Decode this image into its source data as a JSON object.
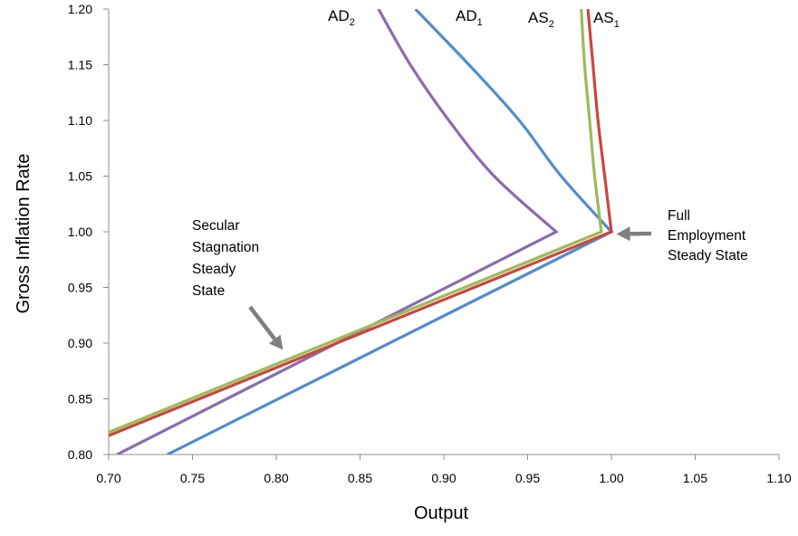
{
  "chart_data": {
    "type": "line",
    "xlabel": "Output",
    "ylabel": "Gross Inflation Rate",
    "xlim": [
      0.7,
      1.1
    ],
    "ylim": [
      0.8,
      1.2
    ],
    "x_ticks": [
      "0.70",
      "0.75",
      "0.80",
      "0.85",
      "0.90",
      "0.95",
      "1.00",
      "1.05",
      "1.10"
    ],
    "y_ticks": [
      "0.80",
      "0.85",
      "0.90",
      "0.95",
      "1.00",
      "1.05",
      "1.10",
      "1.15",
      "1.20"
    ],
    "grid": false,
    "series": [
      {
        "name": "AD",
        "subscript": "1",
        "color": "#4F8DCB",
        "points": [
          [
            0.735,
            0.8
          ],
          [
            1.0,
            1.0
          ],
          [
            0.97,
            1.05
          ],
          [
            0.945,
            1.1
          ],
          [
            0.915,
            1.15
          ],
          [
            0.883,
            1.2
          ]
        ]
      },
      {
        "name": "AD",
        "subscript": "2",
        "color": "#8B6BAF",
        "points": [
          [
            0.705,
            0.8
          ],
          [
            0.967,
            1.0
          ],
          [
            0.93,
            1.05
          ],
          [
            0.903,
            1.1
          ],
          [
            0.88,
            1.15
          ],
          [
            0.861,
            1.2
          ]
        ]
      },
      {
        "name": "AS",
        "subscript": "1",
        "color": "#C9463D",
        "points": [
          [
            0.7,
            0.817
          ],
          [
            1.0,
            1.0
          ],
          [
            0.996,
            1.05
          ],
          [
            0.992,
            1.1
          ],
          [
            0.989,
            1.15
          ],
          [
            0.986,
            1.2
          ]
        ]
      },
      {
        "name": "AS",
        "subscript": "2",
        "color": "#9BBB59",
        "points": [
          [
            0.7,
            0.82
          ],
          [
            0.994,
            1.0
          ],
          [
            0.99,
            1.05
          ],
          [
            0.987,
            1.1
          ],
          [
            0.984,
            1.15
          ],
          [
            0.982,
            1.2
          ]
        ]
      }
    ],
    "annotations": [
      {
        "lines": [
          "Secular",
          "Stagnation",
          "Steady",
          "State"
        ],
        "arrow_color": "#7F7F7F",
        "arrow_tip": [
          0.804,
          0.894
        ]
      },
      {
        "lines": [
          "Full",
          "Employment",
          "Steady State"
        ],
        "arrow_color": "#7F7F7F",
        "arrow_tip": [
          1.003,
          0.998
        ]
      }
    ]
  }
}
